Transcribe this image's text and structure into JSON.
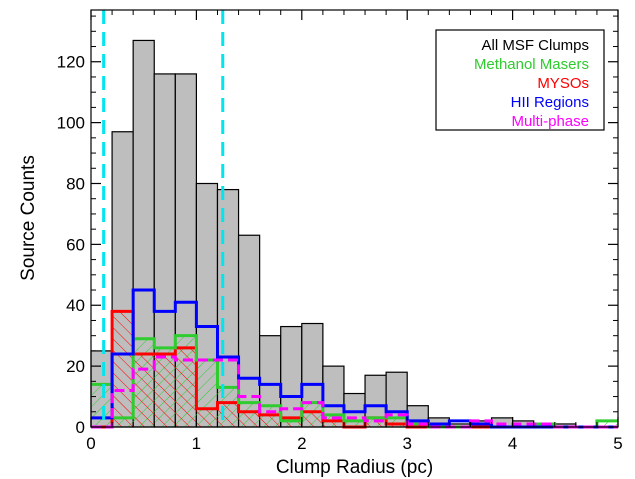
{
  "chart_data": {
    "type": "bar",
    "title": "",
    "xlabel": "Clump Radius (pc)",
    "ylabel": "Source Counts",
    "xlim": [
      0,
      5
    ],
    "ylim": [
      0,
      137
    ],
    "bin_width": 0.2,
    "bin_starts": [
      0.0,
      0.2,
      0.4,
      0.6,
      0.8,
      1.0,
      1.2,
      1.4,
      1.6,
      1.8,
      2.0,
      2.2,
      2.4,
      2.6,
      2.8,
      3.0,
      3.2,
      3.4,
      3.6,
      3.8,
      4.0,
      4.2,
      4.4,
      4.6,
      4.8
    ],
    "xticks": [
      0,
      1,
      2,
      3,
      4,
      5
    ],
    "yticks": [
      0,
      20,
      40,
      60,
      80,
      100,
      120
    ],
    "vlines": [
      0.12,
      1.25
    ],
    "legend_position": "top-right",
    "series": [
      {
        "name": "All MSF Clumps",
        "color": "#000000",
        "style": "filled-gray",
        "values": [
          25,
          97,
          127,
          116,
          116,
          80,
          78,
          63,
          30,
          33,
          34,
          20,
          11,
          17,
          18,
          7,
          3,
          1,
          2,
          3,
          2,
          0,
          1,
          0,
          0
        ]
      },
      {
        "name": "Methanol Masers",
        "color": "#2ecc2e",
        "style": "hatched-solid",
        "values": [
          14,
          3,
          29,
          26,
          30,
          22,
          13,
          8,
          7,
          2,
          8,
          4,
          2,
          3,
          3,
          1,
          0,
          0,
          1,
          0,
          0,
          1,
          0,
          0,
          2
        ]
      },
      {
        "name": "MYSOs",
        "color": "#ff0000",
        "style": "hatched-solid",
        "values": [
          0,
          38,
          24,
          24,
          26,
          6,
          8,
          5,
          4,
          3,
          5,
          2,
          0,
          3,
          1,
          0,
          0,
          0,
          0,
          0,
          0,
          0,
          0,
          0,
          0
        ]
      },
      {
        "name": "HII Regions",
        "color": "#0000ff",
        "style": "solid",
        "values": [
          3,
          24,
          45,
          38,
          41,
          33,
          23,
          16,
          14,
          10,
          14,
          7,
          5,
          7,
          5,
          2,
          1,
          2,
          1,
          0,
          0,
          0,
          0,
          0,
          0
        ]
      },
      {
        "name": "Multi-phase",
        "color": "#ff00ff",
        "style": "dashed",
        "values": [
          0,
          12,
          19,
          23,
          22,
          22,
          22,
          10,
          5,
          6,
          8,
          3,
          3,
          2,
          4,
          1,
          0,
          0,
          2,
          1,
          1,
          1,
          0,
          0,
          0
        ]
      }
    ]
  },
  "colors": {
    "gray_fill": "#bebebe",
    "vline": "#00e5ee",
    "axis": "#000000"
  }
}
